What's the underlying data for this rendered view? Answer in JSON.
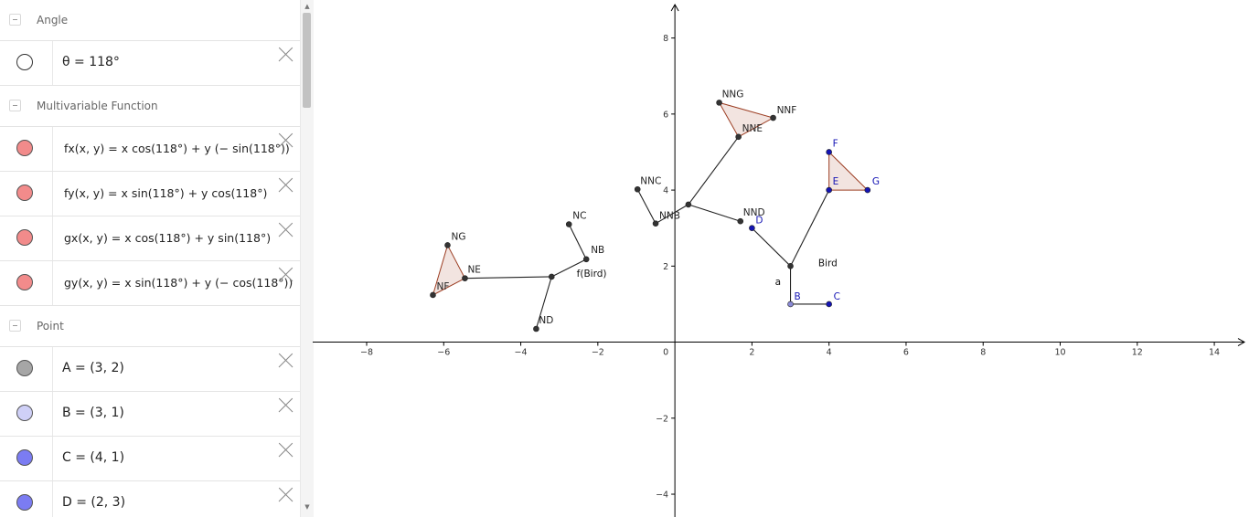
{
  "algebra_view": {
    "categories": [
      {
        "label": "Angle",
        "items": [
          {
            "expr": "θ = 118°",
            "marble": "#ffffff",
            "kind": "plain"
          }
        ]
      },
      {
        "label": "Multivariable Function",
        "items": [
          {
            "expr": "fx(x, y)  =  x  cos(118°) + y  (− sin(118°))",
            "marble": "#f28b8b",
            "kind": "fn"
          },
          {
            "expr": "fy(x, y)  =  x  sin(118°) + y  cos(118°)",
            "marble": "#f28b8b",
            "kind": "fn"
          },
          {
            "expr": "gx(x, y)  =  x  cos(118°) + y  sin(118°)",
            "marble": "#f28b8b",
            "kind": "fn"
          },
          {
            "expr": "gy(x, y)  =  x  sin(118°) + y  (− cos(118°))",
            "marble": "#f28b8b",
            "kind": "fn"
          }
        ]
      },
      {
        "label": "Point",
        "items": [
          {
            "expr": "A = (3, 2)",
            "marble": "#a6a6a6",
            "kind": "plain"
          },
          {
            "expr": "B = (3, 1)",
            "marble": "#cfd0f7",
            "kind": "plain"
          },
          {
            "expr": "C = (4, 1)",
            "marble": "#7b7cf2",
            "kind": "plain"
          },
          {
            "expr": "D = (2, 3)",
            "marble": "#7b7cf2",
            "kind": "plain"
          }
        ]
      }
    ]
  },
  "graphics": {
    "x_ticks": [
      "−8",
      "−6",
      "−4",
      "−2",
      "0",
      "2",
      "4",
      "6",
      "8",
      "10",
      "12",
      "14"
    ],
    "y_ticks": [
      "8",
      "6",
      "4",
      "2",
      "−2",
      "−4"
    ],
    "x_range": [
      -9.4,
      14.9
    ],
    "y_range": [
      -4.6,
      9.0
    ],
    "colors": {
      "axis": "#000000",
      "point_dark": "#333333",
      "point_blue": "#1414b4",
      "point_light": "#8a8ad6",
      "fill": "#f2e4e0",
      "fill_edge": "#9c3d22",
      "label_blue": "#1414b4",
      "label_dark": "#222222"
    },
    "polygons": [
      {
        "name": "triangle-EFG",
        "pts": [
          [
            4,
            5
          ],
          [
            4,
            4
          ],
          [
            5,
            4
          ]
        ]
      },
      {
        "name": "triangle-NNE-NNF-NNG",
        "pts": [
          [
            1.65,
            5.4
          ],
          [
            2.55,
            5.9
          ],
          [
            1.15,
            6.3
          ]
        ]
      },
      {
        "name": "triangle-NE-NF-NG",
        "pts": [
          [
            -5.45,
            1.68
          ],
          [
            -6.28,
            1.24
          ],
          [
            -5.9,
            2.55
          ]
        ]
      }
    ],
    "segments": [
      {
        "name": "bird-segment-a",
        "from": [
          3,
          2
        ],
        "to": [
          3,
          1
        ]
      },
      {
        "name": "bird-segment-BC",
        "from": [
          3,
          1
        ],
        "to": [
          4,
          1
        ]
      },
      {
        "name": "bird-segment-AD",
        "from": [
          3,
          2
        ],
        "to": [
          2,
          3
        ]
      },
      {
        "name": "bird-segment-AE",
        "from": [
          3,
          2
        ],
        "to": [
          4,
          4
        ]
      },
      {
        "name": "nn-segment-center-NNB",
        "from": [
          0.35,
          3.62
        ],
        "to": [
          -0.5,
          3.12
        ]
      },
      {
        "name": "nn-segment-NNB-NNC",
        "from": [
          -0.5,
          3.12
        ],
        "to": [
          -0.97,
          4.02
        ]
      },
      {
        "name": "nn-segment-center-NND",
        "from": [
          0.35,
          3.62
        ],
        "to": [
          1.7,
          3.18
        ]
      },
      {
        "name": "nn-segment-center-NNE",
        "from": [
          0.35,
          3.62
        ],
        "to": [
          1.65,
          5.4
        ]
      },
      {
        "name": "n-segment-center-NB",
        "from": [
          -3.2,
          1.72
        ],
        "to": [
          -2.3,
          2.18
        ]
      },
      {
        "name": "n-segment-NB-NC",
        "from": [
          -2.3,
          2.18
        ],
        "to": [
          -2.75,
          3.1
        ]
      },
      {
        "name": "n-segment-center-ND",
        "from": [
          -3.2,
          1.72
        ],
        "to": [
          -3.6,
          0.35
        ]
      },
      {
        "name": "n-segment-center-NE",
        "from": [
          -3.2,
          1.72
        ],
        "to": [
          -5.45,
          1.68
        ]
      }
    ],
    "points": [
      {
        "name": "point-B",
        "x": 3,
        "y": 1,
        "style": "light",
        "label": "B",
        "lc": "blue",
        "dx": 4,
        "dy": -5
      },
      {
        "name": "point-C",
        "x": 4,
        "y": 1,
        "style": "blue",
        "label": "C",
        "lc": "blue",
        "dx": 5,
        "dy": -5
      },
      {
        "name": "point-D",
        "x": 2,
        "y": 3,
        "style": "blue",
        "label": "D",
        "lc": "blue",
        "dx": 4,
        "dy": -5
      },
      {
        "name": "point-E",
        "x": 4,
        "y": 4,
        "style": "blue",
        "label": "E",
        "lc": "blue",
        "dx": 4,
        "dy": -6
      },
      {
        "name": "point-F",
        "x": 4,
        "y": 5,
        "style": "blue",
        "label": "F",
        "lc": "blue",
        "dx": 4,
        "dy": -6
      },
      {
        "name": "point-G",
        "x": 5,
        "y": 4,
        "style": "blue",
        "label": "G",
        "lc": "blue",
        "dx": 5,
        "dy": -6
      },
      {
        "name": "point-A",
        "x": 3,
        "y": 2,
        "style": "dark",
        "label": "",
        "lc": "dark",
        "dx": 0,
        "dy": 0
      },
      {
        "name": "point-NNB",
        "x": -0.5,
        "y": 3.12,
        "style": "dark",
        "label": "NNB",
        "lc": "dark",
        "dx": 4,
        "dy": -5
      },
      {
        "name": "point-NNC",
        "x": -0.97,
        "y": 4.02,
        "style": "dark",
        "label": "NNC",
        "lc": "dark",
        "dx": 3,
        "dy": -6
      },
      {
        "name": "point-NND",
        "x": 1.7,
        "y": 3.18,
        "style": "dark",
        "label": "NND",
        "lc": "dark",
        "dx": 3,
        "dy": -6
      },
      {
        "name": "point-NNE",
        "x": 1.65,
        "y": 5.4,
        "style": "dark",
        "label": "NNE",
        "lc": "dark",
        "dx": 4,
        "dy": -6
      },
      {
        "name": "point-NNF",
        "x": 2.55,
        "y": 5.9,
        "style": "dark",
        "label": "NNF",
        "lc": "dark",
        "dx": 4,
        "dy": -5
      },
      {
        "name": "point-NNG",
        "x": 1.15,
        "y": 6.3,
        "style": "dark",
        "label": "NNG",
        "lc": "dark",
        "dx": 3,
        "dy": -6
      },
      {
        "name": "point-NN-center",
        "x": 0.35,
        "y": 3.62,
        "style": "dark",
        "label": "",
        "lc": "dark",
        "dx": 0,
        "dy": 0
      },
      {
        "name": "point-NB",
        "x": -2.3,
        "y": 2.18,
        "style": "dark",
        "label": "NB",
        "lc": "dark",
        "dx": 5,
        "dy": -7
      },
      {
        "name": "point-NC",
        "x": -2.75,
        "y": 3.1,
        "style": "dark",
        "label": "NC",
        "lc": "dark",
        "dx": 4,
        "dy": -6
      },
      {
        "name": "point-ND",
        "x": -3.6,
        "y": 0.35,
        "style": "dark",
        "label": "ND",
        "lc": "dark",
        "dx": 3,
        "dy": -6
      },
      {
        "name": "point-NE",
        "x": -5.45,
        "y": 1.68,
        "style": "dark",
        "label": "NE",
        "lc": "dark",
        "dx": 3,
        "dy": -6
      },
      {
        "name": "point-NF",
        "x": -6.28,
        "y": 1.24,
        "style": "dark",
        "label": "NF",
        "lc": "dark",
        "dx": 4,
        "dy": -6
      },
      {
        "name": "point-NG",
        "x": -5.9,
        "y": 2.55,
        "style": "dark",
        "label": "NG",
        "lc": "dark",
        "dx": 4,
        "dy": -6
      },
      {
        "name": "point-N-center",
        "x": -3.2,
        "y": 1.72,
        "style": "dark",
        "label": "",
        "lc": "dark",
        "dx": 0,
        "dy": 0
      }
    ],
    "text_labels": [
      {
        "name": "label-bird",
        "text": "Bird",
        "x": 3.72,
        "y": 2.0
      },
      {
        "name": "label-f-bird",
        "text": "f(Bird)",
        "x": -2.55,
        "y": 1.72
      },
      {
        "name": "label-a",
        "text": "a",
        "x": 2.6,
        "y": 1.5
      }
    ]
  }
}
